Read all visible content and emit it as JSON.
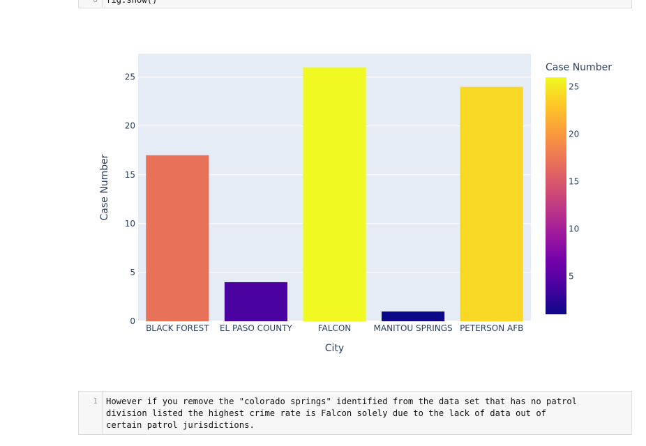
{
  "top_cell": {
    "line_number": "8",
    "code": "fig.show()"
  },
  "chart_data": {
    "type": "bar",
    "categories": [
      "BLACK FOREST",
      "EL PASO COUNTY",
      "FALCON",
      "MANITOU SPRINGS",
      "PETERSON AFB"
    ],
    "values": [
      17,
      4,
      26,
      1,
      24
    ],
    "xlabel": "City",
    "ylabel": "Case Number",
    "ylim": [
      0,
      27.4
    ],
    "yticks": [
      0,
      5,
      10,
      15,
      20,
      25
    ],
    "grid": true,
    "colorbar": {
      "title": "Case Number",
      "range": [
        1,
        26
      ],
      "ticks": [
        5,
        10,
        15,
        20,
        25
      ],
      "colors": [
        "#0d0887",
        "#46039f",
        "#7201a8",
        "#9c179e",
        "#bd3786",
        "#d8576b",
        "#ed7953",
        "#fb9f3a",
        "#fdca26",
        "#f0f921"
      ]
    },
    "colors": {
      "plot_bg": "#e5ecf6",
      "grid": "#ffffff",
      "text": "#2a3f5f"
    }
  },
  "bottom_cell": {
    "line_number": "1",
    "text": "However if you remove the \"colorado springs\" identified from the data set that has no patrol\ndivision listed the highest crime rate is Falcon solely due to the lack of data out of\ncertain patrol jurisdictions."
  }
}
